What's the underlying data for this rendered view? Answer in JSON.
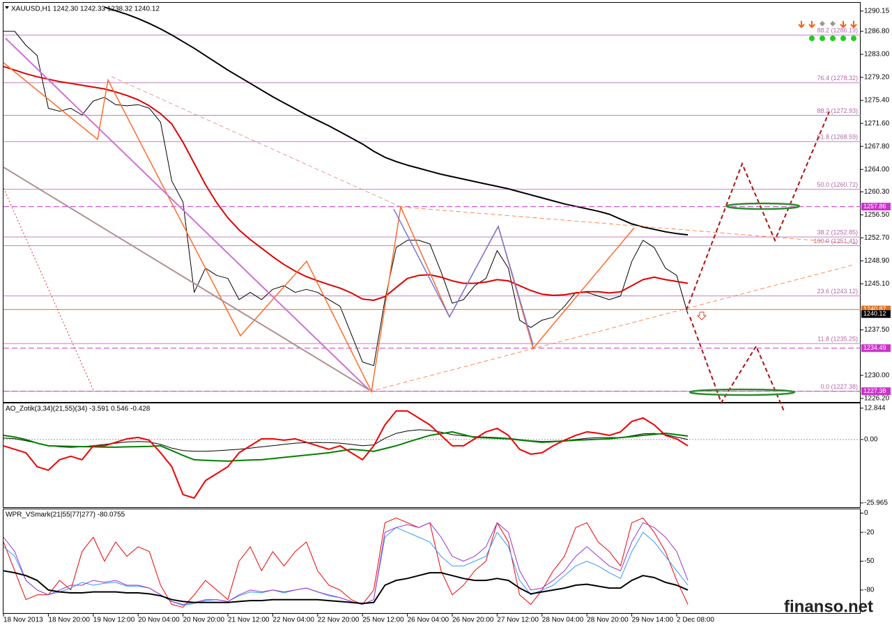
{
  "watermark": "finanso.net",
  "chart_data": [
    {
      "type": "line",
      "title": "XAUUSD,H1  1242.30 1242.33 1238.32 1240.12",
      "categories": [
        "18 Nov 2013",
        null,
        null,
        null,
        "18 Nov 20:00",
        null,
        null,
        null,
        "19 Nov 12:00",
        null,
        null,
        null,
        "20 Nov 04:00",
        null,
        null,
        null,
        "20 Nov 20:00",
        null,
        null,
        null,
        "21 Nov 12:00",
        null,
        null,
        null,
        "22 Nov 04:00",
        null,
        null,
        null,
        "22 Nov 20:00",
        null,
        null,
        null,
        "25 Nov 12:00",
        null,
        null,
        null,
        "26 Nov 04:00",
        null,
        null,
        null,
        "26 Nov 20:00",
        null,
        null,
        null,
        "27 Nov 12:00",
        null,
        null,
        null,
        "28 Nov 04:00",
        null,
        null,
        null,
        "28 Nov 20:00",
        null,
        null,
        null,
        "29 Nov 14:00",
        null,
        null,
        null,
        "2 Dec 08:00",
        null
      ],
      "series": [
        {
          "color": "#000000",
          "width": 1,
          "values": [
            1286.8,
            1286.8,
            1284.5,
            1282.8,
            1274.1,
            1273.6,
            1274.1,
            1273.0,
            1275.3,
            1275.9,
            1274.7,
            1274.5,
            1274.7,
            1274.1,
            1271.8,
            1262.1,
            1258.6,
            1243.7,
            1247.7,
            1246.5,
            1246.0,
            1242.5,
            1243.7,
            1242.5,
            1244.2,
            1244.8,
            1243.7,
            1244.2,
            1243.7,
            1242.5,
            1241.4,
            1236.8,
            1232.2,
            1231.6,
            1242.5,
            1251.1,
            1252.3,
            1252.3,
            1251.7,
            1247.1,
            1241.9,
            1242.5,
            1244.8,
            1246.0,
            1250.6,
            1247.7,
            1239.1,
            1237.9,
            1239.1,
            1239.6,
            1241.4,
            1243.7,
            1243.7,
            1243.1,
            1242.5,
            1243.1,
            1248.8,
            1252.3,
            1251.1,
            1247.7,
            1246.5,
            1240.12
          ]
        },
        {
          "color": "#000000",
          "width": 2,
          "values": [
            null,
            null,
            null,
            null,
            null,
            null,
            null,
            null,
            null,
            1290.8,
            1290.2,
            1289.6,
            1288.9,
            1288.1,
            1287.2,
            1286.2,
            1285.1,
            1284.0,
            1282.8,
            1281.6,
            1280.4,
            1279.3,
            1278.2,
            1277.1,
            1276.0,
            1275.0,
            1274.0,
            1273.0,
            1272.1,
            1271.2,
            1270.2,
            1269.2,
            1268.2,
            1267.0,
            1266.0,
            1265.3,
            1264.7,
            1264.2,
            1263.7,
            1263.2,
            1262.8,
            1262.4,
            1262.0,
            1261.6,
            1261.2,
            1260.8,
            1260.3,
            1259.8,
            1259.3,
            1258.8,
            1258.3,
            1257.9,
            1257.5,
            1257.1,
            1256.6,
            1255.8,
            1255.0,
            1254.5,
            1254.1,
            1253.7,
            1253.4,
            1253.2
          ]
        },
        {
          "color": "#dd0000",
          "width": 2,
          "values": [
            1281.0,
            1280.4,
            1279.8,
            1279.3,
            1278.9,
            1278.5,
            1278.2,
            1277.9,
            1277.6,
            1277.3,
            1276.8,
            1276.2,
            1275.5,
            1274.5,
            1273.2,
            1271.5,
            1268.5,
            1265.0,
            1261.5,
            1258.5,
            1256.0,
            1254.0,
            1252.4,
            1251.0,
            1249.6,
            1248.3,
            1247.2,
            1246.3,
            1245.6,
            1245.0,
            1244.4,
            1243.6,
            1242.6,
            1242.4,
            1243.0,
            1244.5,
            1246.0,
            1246.5,
            1246.6,
            1246.2,
            1245.6,
            1245.2,
            1245.2,
            1245.4,
            1245.8,
            1245.6,
            1244.8,
            1244.0,
            1243.4,
            1243.2,
            1243.3,
            1243.6,
            1243.8,
            1243.8,
            1243.6,
            1243.8,
            1244.8,
            1245.8,
            1246.2,
            1245.8,
            1245.5,
            1245.2
          ]
        }
      ],
      "ylim": [
        1225.6,
        1291.4
      ],
      "yticks": [
        1290.15,
        {
          "value": 1286.8,
          "label": "1286.80"
        },
        {
          "value": 1283,
          "label": "1283.00"
        },
        {
          "value": 1279.2,
          "label": "1279.20"
        },
        {
          "value": 1275.4,
          "label": "1275.40"
        },
        {
          "value": 1271.6,
          "label": "1271.60"
        },
        {
          "value": 1267.8,
          "label": "1267.80"
        },
        {
          "value": 1264,
          "label": "1264.00"
        },
        {
          "value": 1260.3,
          "label": "1260.30"
        },
        {
          "value": 1256.5,
          "label": "1256.50"
        },
        {
          "value": 1252.7,
          "label": "1252.70"
        },
        {
          "value": 1248.9,
          "label": "1248.90"
        },
        {
          "value": 1245.1,
          "label": "1245.10"
        },
        {
          "value": 1237.5,
          "label": "1237.50"
        },
        {
          "value": 1230,
          "label": "1230.00"
        },
        {
          "value": 1226.2,
          "label": "1226.20"
        }
      ],
      "levels": [
        {
          "label": "88.2 (1286.19)",
          "value": 1286.19
        },
        {
          "label": "76.4 (1278.32)",
          "value": 1278.32
        },
        {
          "label": "88.2 (1272.93)",
          "value": 1272.93
        },
        {
          "label": "61.8 (1268.59)",
          "value": 1268.59
        },
        {
          "label": "50.0 (1260.72)",
          "value": 1260.72
        },
        {
          "label": "38.2 (1252.85)",
          "value": 1252.85
        },
        {
          "label": "100.0 (1251.41)",
          "value": 1251.41
        },
        {
          "label": "23.6 (1243.12)",
          "value": 1243.12
        },
        {
          "label": "11.8 (1235.25)",
          "value": 1235.25
        },
        {
          "label": "0.0 (1227.38)",
          "value": 1227.38
        }
      ],
      "level_color": "#c080c0",
      "price_tags": [
        {
          "value": 1257.86,
          "color": "#cc33cc",
          "line": "dashed"
        },
        {
          "value": 1240.87,
          "color": "#e07020",
          "line": "solid"
        },
        {
          "value": 1240.12,
          "color": "#000000",
          "line": "none"
        },
        {
          "value": 1234.49,
          "color": "#cc33cc",
          "line": "dashed"
        },
        {
          "value": 1227.38,
          "color": "#cc33cc",
          "line": "dashed"
        }
      ]
    },
    {
      "type": "line",
      "title": "AO_Zotik(3,34)(21,55)(34) -3.591 0.546 -0.428",
      "series": [
        {
          "color": "#000000",
          "width": 1,
          "values": [
            0.6,
            0.3,
            -0.5,
            -1.5,
            -2.5,
            -3.0,
            -3.2,
            -3.0,
            -2.5,
            -2.0,
            -1.5,
            -1.0,
            -0.8,
            -1.0,
            -2.0,
            -3.5,
            -4.5,
            -4.8,
            -4.8,
            -4.6,
            -4.3,
            -4.0,
            -3.5,
            -3.0,
            -2.5,
            -2.0,
            -1.5,
            -1.3,
            -1.2,
            -1.3,
            -1.5,
            -2.0,
            -2.5,
            -2.2,
            0.5,
            2.5,
            3.5,
            4.0,
            3.8,
            3.0,
            2.0,
            1.5,
            1.2,
            1.0,
            0.8,
            0.5,
            0.0,
            -0.5,
            -0.8,
            -0.7,
            -0.5,
            0.0,
            0.5,
            0.8,
            0.8,
            0.8,
            1.5,
            2.3,
            2.5,
            2.0,
            1.0,
            0.0
          ]
        },
        {
          "color": "#008000",
          "width": 2,
          "values": [
            1.71,
            1.0,
            0.0,
            -1.5,
            -2.57,
            -2.7,
            -2.8,
            -2.9,
            -3.0,
            -3.1,
            -3.14,
            -3.0,
            -2.9,
            -2.8,
            -2.57,
            -4.5,
            -6.5,
            -8.27,
            -8.5,
            -8.7,
            -8.84,
            -8.6,
            -8.4,
            -8.27,
            -7.8,
            -7.3,
            -6.85,
            -6.4,
            -5.9,
            -5.42,
            -4.7,
            -4.0,
            -4.4,
            -4.85,
            -3.7,
            -2.57,
            -1.1,
            0.3,
            1.71,
            2.4,
            3.14,
            2.0,
            0.86,
            0.7,
            0.5,
            0.29,
            -0.2,
            -0.7,
            -1.14,
            -0.9,
            -0.6,
            -0.29,
            -0.1,
            0.1,
            0.29,
            0.8,
            1.2,
            1.71,
            2.1,
            2.57,
            2.0,
            1.43
          ]
        },
        {
          "color": "#ee0000",
          "width": 2,
          "values": [
            -2.57,
            -4.0,
            -5.42,
            -11.13,
            -12.55,
            -8.27,
            -6.85,
            -8.27,
            -2.57,
            -2.57,
            -1.14,
            0.29,
            0.86,
            -0.29,
            -5.42,
            -11.13,
            -22.54,
            -23.97,
            -16.83,
            -13.98,
            -11.13,
            -5.42,
            -2.57,
            0.29,
            0.29,
            -0.29,
            0.29,
            -1.14,
            -2.57,
            -4.0,
            -2.57,
            -5.42,
            -8.27,
            -2.57,
            5.99,
            11.7,
            11.7,
            8.84,
            5.99,
            1.71,
            -2.57,
            -2.57,
            0.29,
            3.14,
            4.56,
            1.71,
            -4.0,
            -5.99,
            -5.42,
            -2.57,
            -0.29,
            1.71,
            3.14,
            2.57,
            1.71,
            3.14,
            7.42,
            8.84,
            5.99,
            1.71,
            0.29,
            -2.57
          ]
        }
      ],
      "ylim": [
        -27.7,
        14.8
      ],
      "yticks": [
        12.844,
        {
          "value": 0,
          "label": "0.00"
        },
        -25.965
      ],
      "zero_line": true
    },
    {
      "type": "line",
      "title": "WPR_VSmark(21|55|77|277) -80.0755",
      "series": [
        {
          "color": "#ee0000",
          "width": 1,
          "values": [
            -30,
            -60,
            -90,
            -85,
            -85,
            -70,
            -80,
            -40,
            -25,
            -50,
            -30,
            -45,
            -35,
            -40,
            -75,
            -95,
            -98,
            -85,
            -70,
            -80,
            -90,
            -50,
            -35,
            -60,
            -40,
            -55,
            -40,
            -30,
            -60,
            -75,
            -80,
            -90,
            -95,
            -80,
            -10,
            -5,
            -10,
            -15,
            -10,
            -60,
            -85,
            -75,
            -60,
            -50,
            -10,
            -30,
            -85,
            -95,
            -80,
            -60,
            -45,
            -15,
            -10,
            -30,
            -40,
            -55,
            -10,
            -5,
            -20,
            -40,
            -70,
            -95
          ]
        },
        {
          "color": "#3399ff",
          "width": 1,
          "values": [
            -35,
            -45,
            -70,
            -80,
            -85,
            -82,
            -78,
            -72,
            -75,
            -73,
            -72,
            -76,
            -76,
            -78,
            -85,
            -92,
            -96,
            -94,
            -91,
            -90,
            -92,
            -86,
            -82,
            -83,
            -80,
            -83,
            -80,
            -78,
            -82,
            -86,
            -88,
            -92,
            -95,
            -90,
            -25,
            -15,
            -20,
            -25,
            -30,
            -45,
            -55,
            -55,
            -50,
            -45,
            -20,
            -35,
            -70,
            -85,
            -80,
            -75,
            -65,
            -55,
            -50,
            -55,
            -62,
            -68,
            -40,
            -20,
            -30,
            -45,
            -60,
            -75
          ]
        },
        {
          "color": "#9933cc",
          "width": 1,
          "values": [
            -25,
            -40,
            -70,
            -80,
            -85,
            -80,
            -75,
            -75,
            -70,
            -72,
            -70,
            -75,
            -75,
            -78,
            -85,
            -92,
            -95,
            -93,
            -90,
            -90,
            -92,
            -85,
            -80,
            -82,
            -80,
            -82,
            -80,
            -78,
            -82,
            -85,
            -88,
            -92,
            -95,
            -90,
            -20,
            -15,
            -12,
            -15,
            -10,
            -25,
            -45,
            -50,
            -45,
            -35,
            -10,
            -20,
            -60,
            -80,
            -78,
            -70,
            -60,
            -45,
            -35,
            -45,
            -55,
            -60,
            -30,
            -10,
            -15,
            -25,
            -40,
            -70
          ]
        },
        {
          "color": "#000000",
          "width": 2,
          "values": [
            -60,
            -62,
            -65,
            -70,
            -80,
            -82,
            -83,
            -83,
            -82,
            -82,
            -82,
            -83,
            -83,
            -84,
            -86,
            -90,
            -92,
            -93,
            -93,
            -93,
            -93,
            -92,
            -91,
            -91,
            -90,
            -90,
            -90,
            -90,
            -90,
            -91,
            -92,
            -93,
            -94,
            -93,
            -75,
            -70,
            -68,
            -65,
            -62,
            -62,
            -65,
            -68,
            -70,
            -70,
            -68,
            -70,
            -78,
            -84,
            -82,
            -80,
            -78,
            -75,
            -74,
            -76,
            -78,
            -78,
            -70,
            -65,
            -67,
            -72,
            -75,
            -80
          ]
        }
      ],
      "ylim": [
        -104,
        4
      ],
      "yticks": [
        0,
        -20,
        -50,
        -80
      ]
    }
  ]
}
